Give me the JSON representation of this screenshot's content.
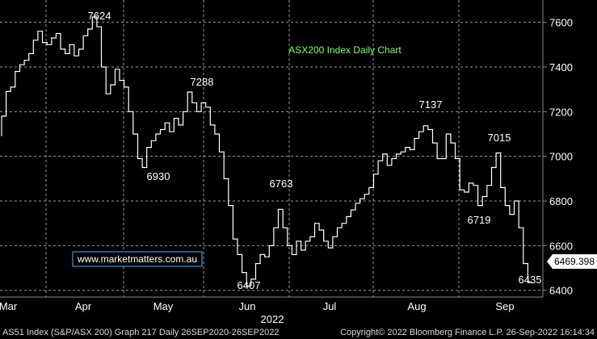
{
  "chart_data": {
    "type": "line",
    "title": "ASX200 Index Daily Chart",
    "ylim": [
      6370,
      7700
    ],
    "y_ticks": [
      6400,
      6600,
      6800,
      7000,
      7200,
      7400,
      7600
    ],
    "x_axis": {
      "months": [
        "Mar",
        "Apr",
        "May",
        "Jun",
        "Jul",
        "Aug",
        "Sep"
      ],
      "year_label": "2022"
    },
    "series": [
      {
        "values": [
          7090,
          7180,
          7290,
          7310,
          7380,
          7410,
          7430,
          7460,
          7520,
          7560,
          7510,
          7500,
          7530,
          7550,
          7480,
          7460,
          7500,
          7450,
          7480,
          7540,
          7570,
          7624,
          7580,
          7400,
          7280,
          7320,
          7390,
          7340,
          7310,
          7200,
          7100,
          6990,
          6950,
          7040,
          7070,
          7100,
          7120,
          7150,
          7110,
          7170,
          7140,
          7200,
          7288,
          7240,
          7200,
          7240,
          7220,
          7140,
          7100,
          7020,
          6900,
          6780,
          6630,
          6560,
          6480,
          6420,
          6450,
          6520,
          6560,
          6550,
          6600,
          6680,
          6763,
          6680,
          6600,
          6560,
          6620,
          6580,
          6620,
          6640,
          6700,
          6670,
          6620,
          6590,
          6640,
          6680,
          6700,
          6730,
          6760,
          6790,
          6810,
          6830,
          6860,
          6920,
          6980,
          7010,
          6960,
          6990,
          7010,
          7020,
          7040,
          7030,
          7080,
          7110,
          7137,
          7120,
          7060,
          6990,
          6990,
          7100,
          7060,
          6990,
          6850,
          6840,
          6880,
          6870,
          6780,
          6820,
          6870,
          6950,
          7015,
          6860,
          6780,
          6740,
          6800,
          6680,
          6520,
          6435
        ],
        "last_value": "6469.398"
      }
    ],
    "annotations": [
      "7624",
      "7288",
      "6930",
      "6763",
      "6407",
      "7137",
      "7015",
      "6719",
      "6435"
    ],
    "grid": true,
    "axis_side": "right"
  },
  "watermark": "www.marketmatters.com.au",
  "footer": {
    "left": "AS51 Index (S&P/ASX 200) Graph 217  Daily 26SEP2020-26SEP2022",
    "right": "Copyright© 2022 Bloomberg Finance L.P.     26-Sep-2022 16:14:34"
  }
}
